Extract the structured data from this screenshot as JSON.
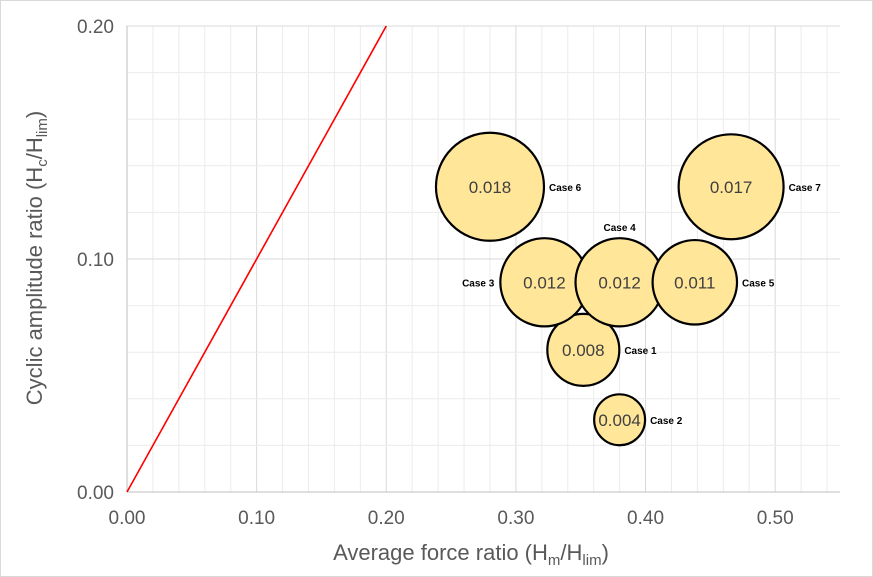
{
  "chart_data": {
    "type": "scatter",
    "subtype": "bubble",
    "xlabel": {
      "main": "Average force ratio (H",
      "sub1": "m",
      "mid": "/H",
      "sub2": "lim",
      "end": ")"
    },
    "ylabel": {
      "main": "Cyclic amplitude ratio (H",
      "sub1": "c",
      "mid": "/H",
      "sub2": "lim",
      "end": ")"
    },
    "xlim": [
      0,
      0.55
    ],
    "ylim": [
      0,
      0.2
    ],
    "x_ticks": [
      "0.00",
      "0.10",
      "0.20",
      "0.30",
      "0.40",
      "0.50"
    ],
    "y_ticks": [
      "0.00",
      "0.10",
      "0.20"
    ],
    "x_tick_values": [
      0,
      0.1,
      0.2,
      0.3,
      0.4,
      0.5
    ],
    "y_tick_values": [
      0,
      0.1,
      0.2
    ],
    "grid": "on",
    "reference_line": {
      "from": [
        0,
        0
      ],
      "to": [
        0.2,
        0.2
      ],
      "color": "#ff0000"
    },
    "bubble_fill": "#ffe699",
    "bubble_stroke": "#000000",
    "points": [
      {
        "label": "Case 1",
        "x": 0.352,
        "y": 0.061,
        "value": "0.008",
        "size": 0.008,
        "label_side": "right"
      },
      {
        "label": "Case 2",
        "x": 0.38,
        "y": 0.031,
        "value": "0.004",
        "size": 0.004,
        "label_side": "right"
      },
      {
        "label": "Case 3",
        "x": 0.322,
        "y": 0.09,
        "value": "0.012",
        "size": 0.012,
        "label_side": "left"
      },
      {
        "label": "Case 4",
        "x": 0.38,
        "y": 0.09,
        "value": "0.012",
        "size": 0.012,
        "label_side": "top"
      },
      {
        "label": "Case 5",
        "x": 0.438,
        "y": 0.09,
        "value": "0.011",
        "size": 0.011,
        "label_side": "right"
      },
      {
        "label": "Case 6",
        "x": 0.28,
        "y": 0.131,
        "value": "0.018",
        "size": 0.018,
        "label_side": "right"
      },
      {
        "label": "Case 7",
        "x": 0.466,
        "y": 0.131,
        "value": "0.017",
        "size": 0.017,
        "label_side": "right"
      }
    ]
  }
}
